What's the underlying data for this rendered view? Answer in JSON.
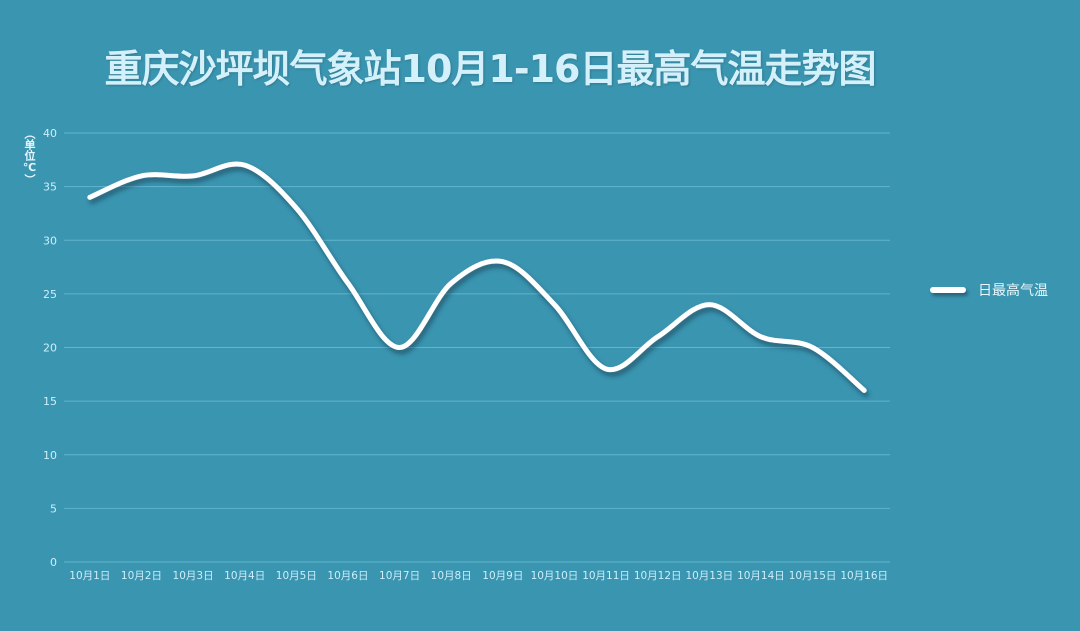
{
  "chart_data": {
    "type": "line",
    "title": "重庆沙坪坝气象站10月1-16日最高气温走势图",
    "xlabel": "",
    "ylabel": "（单位℃）",
    "ylim": [
      0,
      40
    ],
    "yticks": [
      0,
      5,
      10,
      15,
      20,
      25,
      30,
      35,
      40
    ],
    "grid": true,
    "legend_position": "right",
    "smooth": true,
    "categories": [
      "10月1日",
      "10月2日",
      "10月3日",
      "10月4日",
      "10月5日",
      "10月6日",
      "10月7日",
      "10月8日",
      "10月9日",
      "10月10日",
      "10月11日",
      "10月12日",
      "10月13日",
      "10月14日",
      "10月15日",
      "10月16日"
    ],
    "series": [
      {
        "name": "日最高气温",
        "values": [
          34,
          36,
          36,
          37,
          33,
          26,
          20,
          26,
          28,
          24,
          18,
          21,
          24,
          21,
          20,
          16
        ],
        "color": "#ffffff"
      }
    ]
  },
  "colors": {
    "background": "#3a95b0",
    "grid": "#62b5cd",
    "tick_text": "#cdeefa",
    "title": "#d4f1fb",
    "line": "#ffffff"
  }
}
